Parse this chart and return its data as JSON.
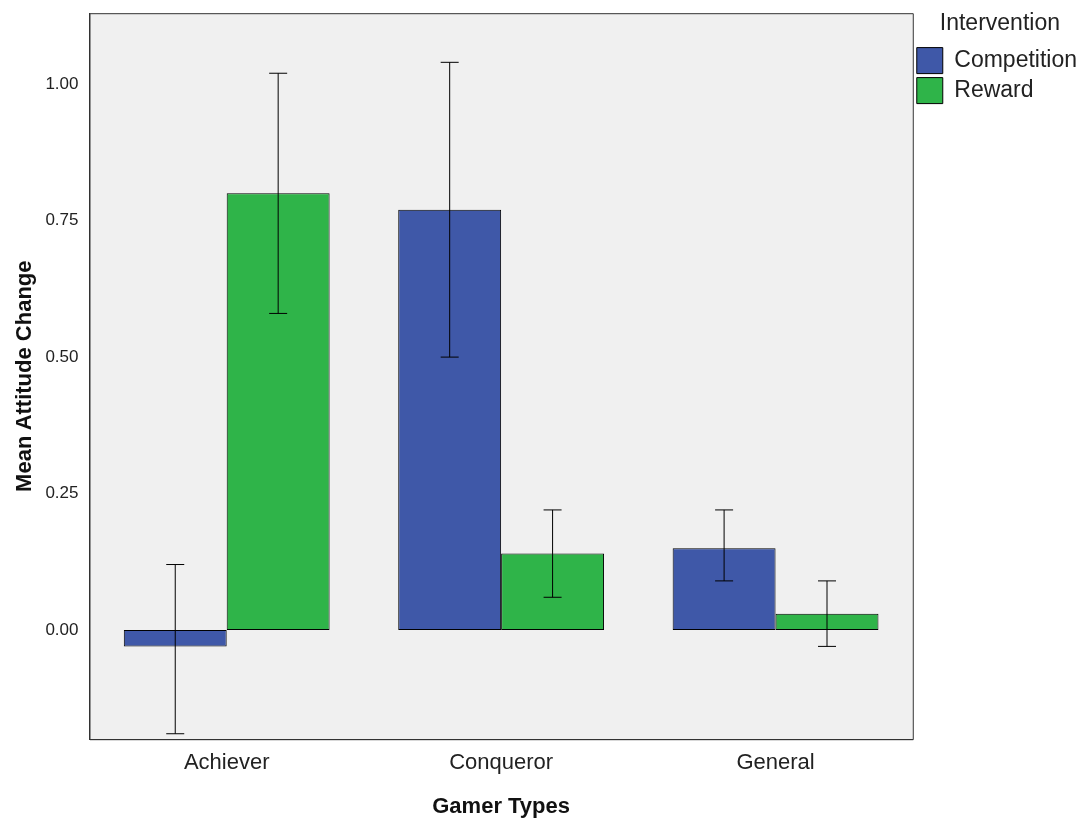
{
  "chart_data": {
    "type": "bar",
    "xlabel": "Gamer Types",
    "ylabel": "Mean Attitude Change",
    "legend_title": "Intervention",
    "legend": "top right",
    "grid": false,
    "categories": [
      "Achiever",
      "Conqueror",
      "General"
    ],
    "series": [
      {
        "name": "Competition",
        "color": "#3f58a8",
        "values": [
          -0.03,
          0.77,
          0.15
        ],
        "errors": [
          [
            -0.19,
            0.12
          ],
          [
            0.5,
            1.04
          ],
          [
            0.09,
            0.22
          ]
        ]
      },
      {
        "name": "Reward",
        "color": "#2fb449",
        "values": [
          0.8,
          0.14,
          0.03
        ],
        "errors": [
          [
            0.58,
            1.02
          ],
          [
            0.06,
            0.22
          ],
          [
            -0.03,
            0.09
          ]
        ]
      }
    ],
    "ylim": [
      -0.2,
      1.13
    ],
    "yticks": [
      {
        "value": 0,
        "label": "0.00"
      },
      {
        "value": 0.25,
        "label": "0.25"
      },
      {
        "value": 0.5,
        "label": "0.50"
      },
      {
        "value": 0.75,
        "label": "0.75"
      },
      {
        "value": 1,
        "label": "1.00"
      }
    ]
  }
}
